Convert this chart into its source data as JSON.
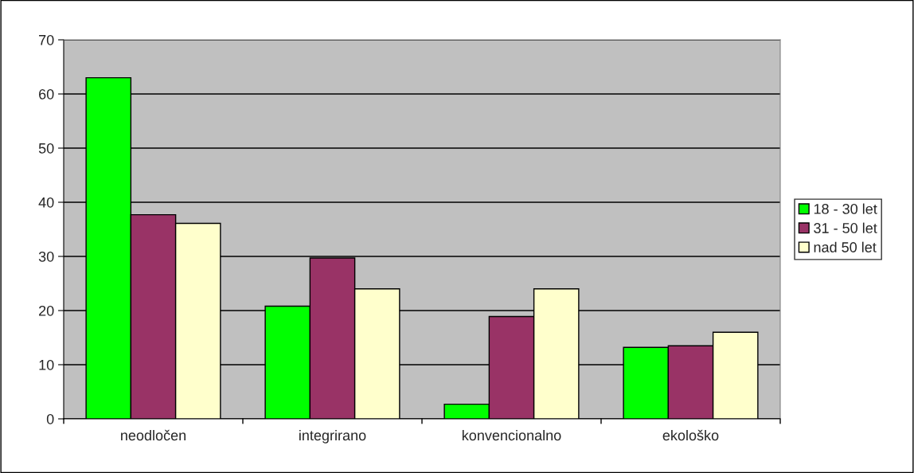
{
  "chart_data": {
    "type": "bar",
    "categories": [
      "neodločen",
      "integrirano",
      "konvencionalno",
      "ekološko"
    ],
    "series": [
      {
        "name": "18 - 30 let",
        "color": "#00ff00",
        "values": [
          63.0,
          20.8,
          2.7,
          13.2
        ]
      },
      {
        "name": "31 - 50 let",
        "color": "#993366",
        "values": [
          37.7,
          29.7,
          18.9,
          13.5
        ]
      },
      {
        "name": "nad 50 let",
        "color": "#ffffcc",
        "values": [
          36.1,
          24.0,
          24.0,
          16.0
        ]
      }
    ],
    "ylim": [
      0,
      70
    ],
    "yticks": [
      0,
      10,
      20,
      30,
      40,
      50,
      60,
      70
    ],
    "grid": "y",
    "legend": "right"
  }
}
